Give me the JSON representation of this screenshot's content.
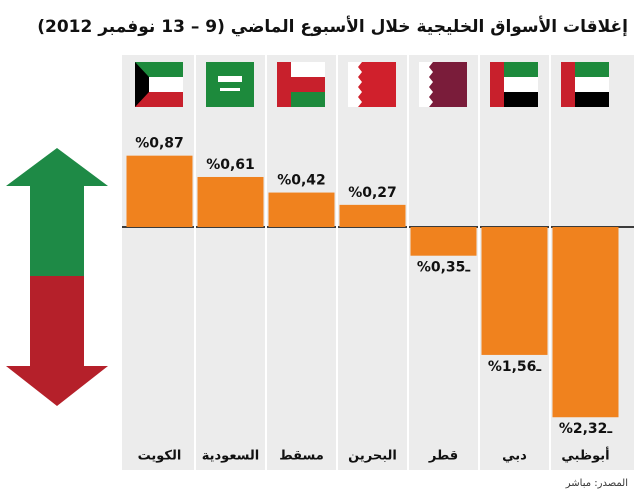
{
  "chart_data": {
    "type": "bar",
    "title": "إغلاقات الأسواق الخليجية خلال الأسبوع الماضي (9 – 13 نوفمبر 2012)",
    "categories": [
      "الكويت",
      "السعودية",
      "مسقط",
      "البحرين",
      "قطر",
      "دبي",
      "أبوظبي"
    ],
    "values": [
      0.87,
      0.61,
      0.42,
      0.27,
      -0.35,
      -1.56,
      -2.32
    ],
    "value_labels": [
      "%0,87",
      "%0,61",
      "%0,42",
      "%0,27",
      "%0,35ـ",
      "%1,56ـ",
      "%2,32ـ"
    ],
    "color": "#f0821e",
    "source": "المصدر: مباشر"
  }
}
